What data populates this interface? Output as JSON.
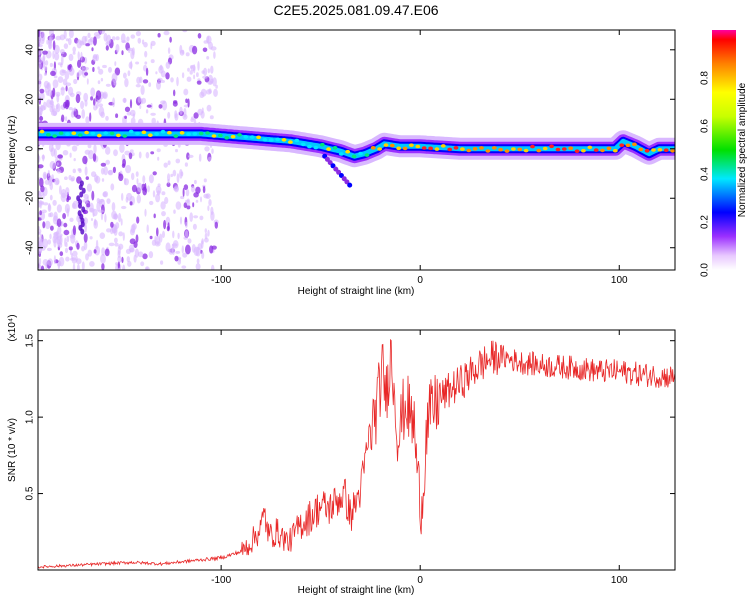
{
  "title": "C2E5.2025.081.09.47.E06",
  "colors": {
    "signal": "#e82828",
    "spectrogram_ridge": "#00e8ff",
    "spectrogram_faint": "#9b30ff"
  },
  "chart_data": [
    {
      "type": "heatmap",
      "xlabel": "Height of straight line (km)",
      "ylabel": "Frequency (Hz)",
      "xlim": [
        -192,
        128
      ],
      "ylim": [
        -49,
        48
      ],
      "xticks": [
        -100,
        0,
        100
      ],
      "yticks": [
        40,
        20,
        0,
        -20,
        -40
      ],
      "colorbar": {
        "label": "Normalized spectral amplitude",
        "range": [
          0,
          1
        ],
        "ticks": [
          "0.0",
          "0.2",
          "0.4",
          "0.6",
          "0.8"
        ]
      },
      "ridge": {
        "x": [
          -192,
          -150,
          -110,
          -95,
          -80,
          -65,
          -50,
          -40,
          -33,
          -28,
          -22,
          -18,
          -10,
          0,
          20,
          50,
          80,
          98,
          102,
          108,
          115,
          120,
          128
        ],
        "frequency_hz": [
          6,
          6,
          6,
          5,
          4,
          3,
          1,
          -1,
          -3,
          -2,
          0,
          2,
          1,
          1,
          0,
          0,
          0,
          0,
          3,
          1,
          -2,
          0,
          0
        ]
      },
      "grid": false
    },
    {
      "type": "line",
      "xlabel": "Height of straight line (km)",
      "ylabel": "SNR (10 * v/v)",
      "yscale_label": "(x10⁴)",
      "xlim": [
        -192,
        128
      ],
      "ylim": [
        0,
        1.57
      ],
      "xticks": [
        -100,
        0,
        100
      ],
      "yticks": [
        0.5,
        1.0,
        1.5
      ],
      "series": [
        {
          "x": [
            -192,
            -175,
            -160,
            -145,
            -130,
            -115,
            -100,
            -90,
            -85,
            -80,
            -78,
            -76,
            -72,
            -66,
            -60,
            -55,
            -50,
            -46,
            -42,
            -38,
            -35,
            -30,
            -26,
            -22,
            -19,
            -17,
            -15,
            -13,
            -11,
            -9,
            -7,
            -5,
            -3,
            -1,
            1,
            3,
            5,
            10,
            15,
            20,
            25,
            30,
            35,
            40,
            45,
            50,
            60,
            70,
            80,
            90,
            100,
            110,
            120,
            128
          ],
          "values": [
            0.02,
            0.03,
            0.04,
            0.05,
            0.04,
            0.06,
            0.08,
            0.12,
            0.18,
            0.28,
            0.36,
            0.22,
            0.25,
            0.18,
            0.3,
            0.35,
            0.42,
            0.4,
            0.45,
            0.5,
            0.35,
            0.52,
            0.85,
            1.05,
            1.3,
            1.15,
            1.42,
            1.2,
            0.85,
            1.02,
            1.1,
            1.0,
            0.95,
            0.55,
            0.42,
            0.9,
            1.02,
            1.12,
            1.18,
            1.22,
            1.28,
            1.34,
            1.38,
            1.4,
            1.38,
            1.36,
            1.34,
            1.33,
            1.32,
            1.3,
            1.3,
            1.28,
            1.27,
            1.26
          ]
        }
      ],
      "grid": false
    }
  ]
}
